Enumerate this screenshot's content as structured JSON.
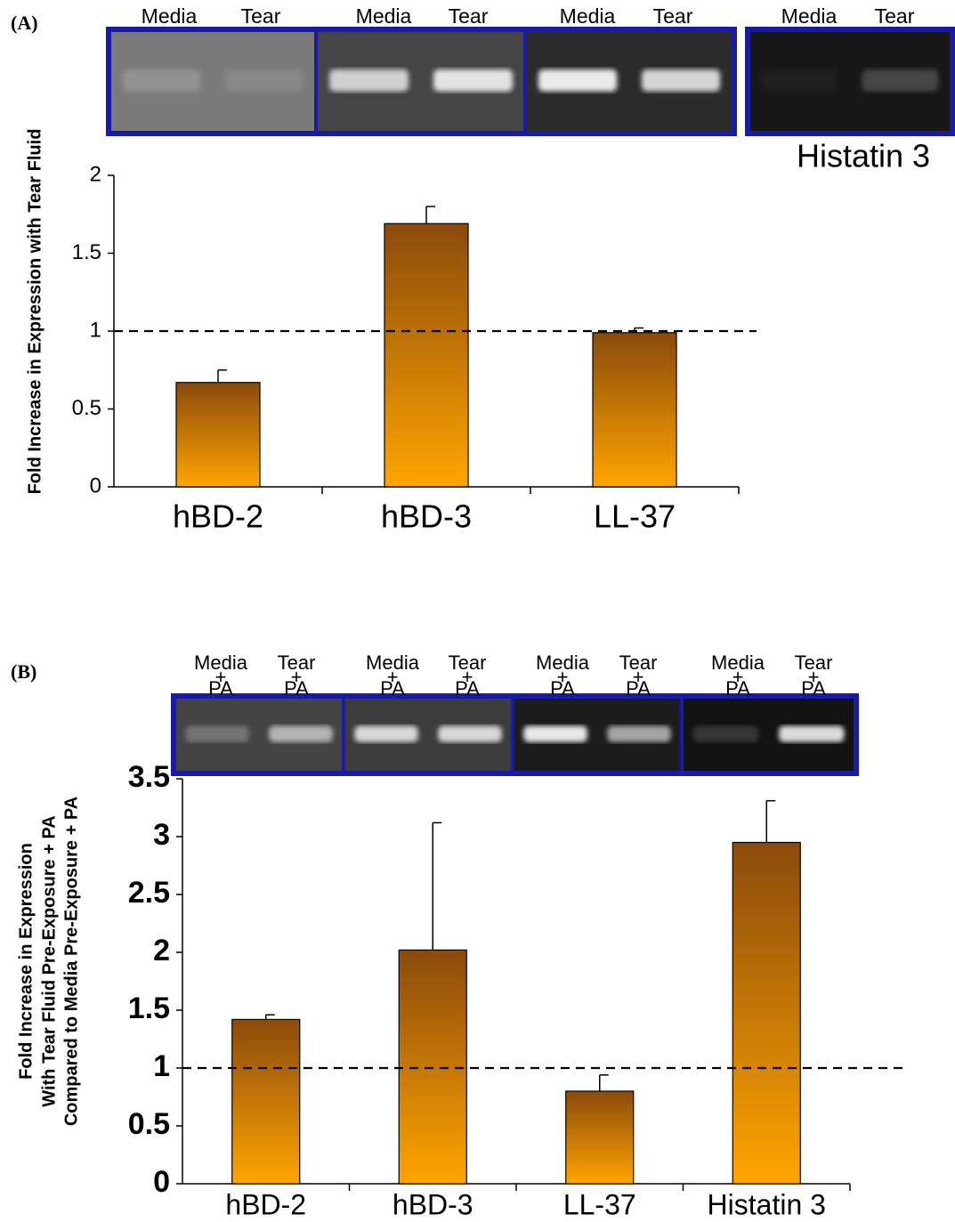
{
  "chart_data": [
    {
      "type": "bar",
      "panel_label": "(A)",
      "y_label": "Fold Increase in Expression with Tear Fluid",
      "categories": [
        "hBD-2",
        "hBD-3",
        "LL-37"
      ],
      "values": [
        0.67,
        1.69,
        0.99
      ],
      "errors": [
        0.08,
        0.11,
        0.03
      ],
      "colors": [
        "#8b4a0c",
        "#ffa500"
      ],
      "ylim": [
        0,
        2
      ],
      "yticks": [
        0,
        0.5,
        1,
        1.5,
        2
      ],
      "reference_line": 1,
      "grid": false,
      "gels": [
        {
          "lanes": [
            "Media",
            "Tear"
          ]
        },
        {
          "lanes": [
            "Media",
            "Tear"
          ]
        },
        {
          "lanes": [
            "Media",
            "Tear"
          ]
        },
        {
          "lanes": [
            "Media",
            "Tear"
          ]
        }
      ],
      "gel_caption": "Histatin 3"
    },
    {
      "type": "bar",
      "panel_label": "(B)",
      "y_label": [
        "Fold Increase in Expression",
        "With Tear Fluid Pre-Exposure + PA",
        "Compared to Media Pre-Exposure + PA"
      ],
      "categories": [
        "hBD-2",
        "hBD-3",
        "LL-37",
        "Histatin 3"
      ],
      "values": [
        1.42,
        2.02,
        0.8,
        2.95
      ],
      "errors": [
        0.04,
        1.1,
        0.14,
        0.36
      ],
      "colors": [
        "#8b4a0c",
        "#ffa500"
      ],
      "ylim": [
        0,
        3.5
      ],
      "yticks": [
        0,
        0.5,
        1,
        1.5,
        2,
        2.5,
        3,
        3.5
      ],
      "reference_line": 1,
      "grid": false,
      "gels": [
        {
          "lanes": [
            [
              "Media",
              "+",
              "PA"
            ],
            [
              "Tear",
              "+",
              "PA"
            ]
          ]
        },
        {
          "lanes": [
            [
              "Media",
              "+",
              "PA"
            ],
            [
              "Tear",
              "+",
              "PA"
            ]
          ]
        },
        {
          "lanes": [
            [
              "Media",
              "+",
              "PA"
            ],
            [
              "Tear",
              "+",
              "PA"
            ]
          ]
        },
        {
          "lanes": [
            [
              "Media",
              "+",
              "PA"
            ],
            [
              "Tear",
              "+",
              "PA"
            ]
          ]
        }
      ]
    }
  ]
}
